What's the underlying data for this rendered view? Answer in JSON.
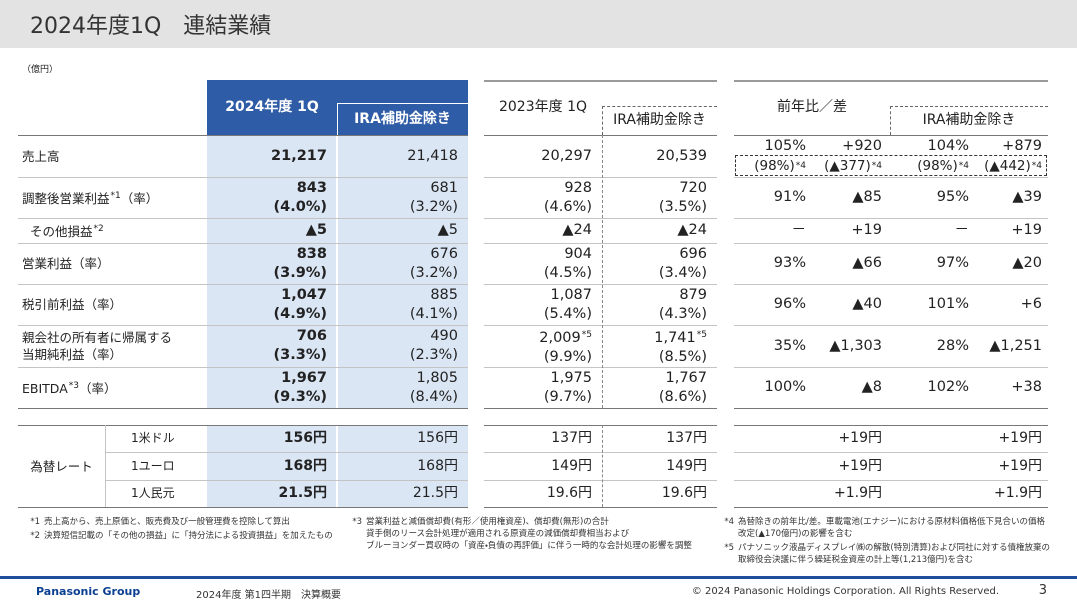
{
  "header": {
    "title": "2024年度1Q　連結業績"
  },
  "unit": "（億円）",
  "columns": {
    "current": "2024年度 1Q",
    "current_ex_ira": "IRA補助金除き",
    "previous": "2023年度 1Q",
    "previous_ex_ira": "IRA補助金除き",
    "comparison": "前年比／差",
    "comparison_ex_ira": "IRA補助金除き"
  },
  "rows": [
    {
      "label": [
        "売上高"
      ],
      "cells": [
        {
          "value": "21,217"
        },
        {
          "value": "21,418"
        },
        {
          "value": "20,297"
        },
        {
          "value": "20,539"
        }
      ],
      "comparison": [
        {
          "ratio": "105%",
          "diff": "+920",
          "ex_fx": {
            "ratio": "(98%)",
            "ratio_note": "*4",
            "diff": "(▲377)",
            "diff_note": "*4"
          }
        },
        {
          "ratio": "104%",
          "diff": "+879",
          "ex_fx": {
            "ratio": "(98%)",
            "ratio_note": "*4",
            "diff": "(▲442)",
            "diff_note": "*4"
          }
        }
      ]
    },
    {
      "label": [
        "調整後営業利益"
      ],
      "note": "*1",
      "suffix": "（率）",
      "cells": [
        {
          "value": "843",
          "rate": "(4.0%)"
        },
        {
          "value": "681",
          "rate": "(3.2%)"
        },
        {
          "value": "928",
          "rate": "(4.6%)"
        },
        {
          "value": "720",
          "rate": "(3.5%)"
        }
      ],
      "comparison": [
        {
          "ratio": "91%",
          "diff": "▲85"
        },
        {
          "ratio": "95%",
          "diff": "▲39"
        }
      ]
    },
    {
      "label": [
        "その他損益"
      ],
      "note": "*2",
      "indent": true,
      "cells": [
        {
          "value": "▲5"
        },
        {
          "value": "▲5"
        },
        {
          "value": "▲24"
        },
        {
          "value": "▲24"
        }
      ],
      "comparison": [
        {
          "ratio": "－",
          "diff": "+19"
        },
        {
          "ratio": "－",
          "diff": "+19"
        }
      ]
    },
    {
      "label": [
        "営業利益"
      ],
      "suffix": "（率）",
      "cells": [
        {
          "value": "838",
          "rate": "(3.9%)"
        },
        {
          "value": "676",
          "rate": "(3.2%)"
        },
        {
          "value": "904",
          "rate": "(4.5%)"
        },
        {
          "value": "696",
          "rate": "(3.4%)"
        }
      ],
      "comparison": [
        {
          "ratio": "93%",
          "diff": "▲66"
        },
        {
          "ratio": "97%",
          "diff": "▲20"
        }
      ]
    },
    {
      "label": [
        "税引前利益"
      ],
      "suffix": "（率）",
      "cells": [
        {
          "value": "1,047",
          "rate": "(4.9%)"
        },
        {
          "value": "885",
          "rate": "(4.1%)"
        },
        {
          "value": "1,087",
          "rate": "(5.4%)"
        },
        {
          "value": "879",
          "rate": "(4.3%)"
        }
      ],
      "comparison": [
        {
          "ratio": "96%",
          "diff": "▲40"
        },
        {
          "ratio": "101%",
          "diff": "+6"
        }
      ]
    },
    {
      "label": [
        "親会社の所有者に帰属する",
        "当期純利益"
      ],
      "suffix": "（率）",
      "cells": [
        {
          "value": "706",
          "rate": "(3.3%)"
        },
        {
          "value": "490",
          "rate": "(2.3%)"
        },
        {
          "value": "2,009",
          "note": "*5",
          "rate": "(9.9%)"
        },
        {
          "value": "1,741",
          "note": "*5",
          "rate": "(8.5%)"
        }
      ],
      "comparison": [
        {
          "ratio": "35%",
          "diff": "▲1,303"
        },
        {
          "ratio": "28%",
          "diff": "▲1,251"
        }
      ]
    },
    {
      "label": [
        "EBITDA"
      ],
      "note": "*3",
      "suffix": "（率）",
      "cells": [
        {
          "value": "1,967",
          "rate": "(9.3%)"
        },
        {
          "value": "1,805",
          "rate": "(8.4%)"
        },
        {
          "value": "1,975",
          "rate": "(9.7%)"
        },
        {
          "value": "1,767",
          "rate": "(8.6%)"
        }
      ],
      "comparison": [
        {
          "ratio": "100%",
          "diff": "▲8"
        },
        {
          "ratio": "102%",
          "diff": "+38"
        }
      ]
    }
  ],
  "fx": {
    "label": "為替レート",
    "rows": [
      {
        "currency": "1米ドル",
        "cells": [
          "156円",
          "156円",
          "137円",
          "137円"
        ],
        "diffs": [
          "+19円",
          "+19円"
        ]
      },
      {
        "currency": "1ユーロ",
        "cells": [
          "168円",
          "168円",
          "149円",
          "149円"
        ],
        "diffs": [
          "+19円",
          "+19円"
        ]
      },
      {
        "currency": "1人民元",
        "cells": [
          "21.5円",
          "21.5円",
          "19.6円",
          "19.6円"
        ],
        "diffs": [
          "+1.9円",
          "+1.9円"
        ]
      }
    ]
  },
  "footnotes": [
    {
      "mark": "*1",
      "lines": [
        "売上高から、売上原価と、販売費及び一般管理費を控除して算出"
      ]
    },
    {
      "mark": "*2",
      "lines": [
        "決算短信記載の「その他の損益」に「持分法による投資損益」を加えたもの"
      ]
    },
    {
      "mark": "*3",
      "lines": [
        "営業利益と減価償却費(有形／使用権資産)、償却費(無形)の合計",
        "貸手側のリース会計処理が適用される原資産の減価償却費相当および",
        "ブルーヨンダー買収時の「資産・負債の再評価」に伴う一時的な会計処理の影響を調整"
      ]
    },
    {
      "mark": "*4",
      "lines": [
        "為替除きの前年比/差。車載電池(エナジー)における原材料価格低下見合いの価格",
        "改定(▲170億円)の影響を含む"
      ]
    },
    {
      "mark": "*5",
      "lines": [
        "パナソニック液晶ディスプレイ㈱の解散(特別清算)および同社に対する債権放棄の",
        "取締役会決議に伴う繰延税金資産の計上等(1,213億円)を含む"
      ]
    }
  ],
  "footer": {
    "brand": "Panasonic Group",
    "document": "2024年度 第1四半期　決算概要",
    "copyright": "© 2024 Panasonic Holdings Corporation. All Rights Reserved.",
    "page": "3"
  }
}
